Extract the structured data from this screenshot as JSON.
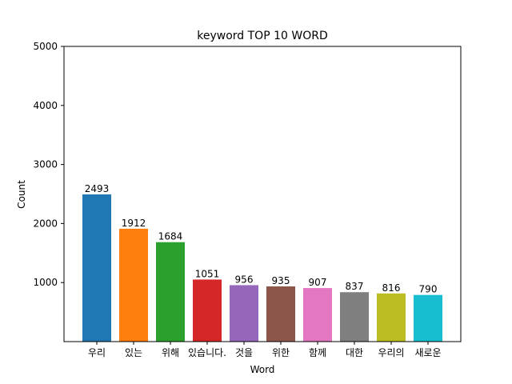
{
  "chart_data": {
    "type": "bar",
    "title": "keyword TOP 10 WORD",
    "xlabel": "Word",
    "ylabel": "Count",
    "categories": [
      "우리",
      "있는",
      "위해",
      "있습니다.",
      "것을",
      "위한",
      "함께",
      "대한",
      "우리의",
      "새로운"
    ],
    "values": [
      2493,
      1912,
      1684,
      1051,
      956,
      935,
      907,
      837,
      816,
      790
    ],
    "colors": [
      "#1f77b4",
      "#ff7f0e",
      "#2ca02c",
      "#d62728",
      "#9467bd",
      "#8c564b",
      "#e377c2",
      "#7f7f7f",
      "#bcbd22",
      "#17becf"
    ],
    "ylim": [
      0,
      5000
    ],
    "yticks": [
      1000,
      2000,
      3000,
      4000,
      5000
    ],
    "grid": false,
    "legend": "none"
  }
}
